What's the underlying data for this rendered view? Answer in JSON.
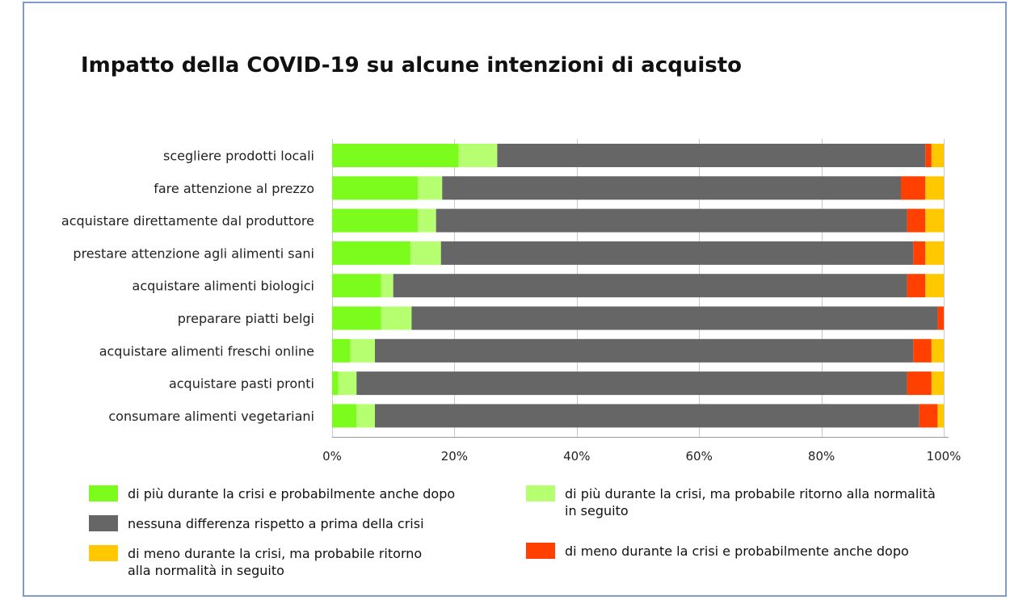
{
  "title": "Impatto della COVID-19 su alcune intenzioni di acquisto",
  "chart_data": {
    "type": "bar",
    "orientation": "horizontal",
    "stacked": true,
    "title": "Impatto della COVID-19 su alcune intenzioni di acquisto",
    "categories": [
      "scegliere prodotti locali",
      "fare attenzione al prezzo",
      "acquistare direttamente dal produttore",
      "prestare attenzione agli alimenti sani",
      "acquistare alimenti biologici",
      "preparare piatti belgi",
      "acquistare alimenti freschi online",
      "acquistare pasti pronti",
      "consumare alimenti vegetariani"
    ],
    "series": [
      {
        "name": "di più durante la crisi e probabilmente anche dopo",
        "color": "#7cfc1c",
        "values": [
          20.7,
          14,
          14,
          12.8,
          8,
          8,
          3,
          1,
          4
        ]
      },
      {
        "name": "di più durante la crisi, ma probabile ritorno alla normalità in seguito",
        "color": "#b6ff70",
        "values": [
          6.3,
          4,
          3,
          5,
          2,
          5,
          4,
          3,
          3
        ]
      },
      {
        "name": "nessuna differenza rispetto a prima della crisi",
        "color": "#666666",
        "values": [
          70,
          75,
          77,
          77.2,
          84,
          86,
          88,
          90,
          89
        ]
      },
      {
        "name": "di meno durante la crisi e probabilmente anche dopo",
        "color": "#ff4000",
        "values": [
          1,
          4,
          3,
          2,
          3,
          1,
          3,
          4,
          3
        ]
      },
      {
        "name": "di meno durante la crisi, ma probabile ritorno alla normalità in seguito",
        "color": "#ffc800",
        "values": [
          2,
          3,
          3,
          3,
          3,
          0,
          2,
          2,
          1
        ]
      }
    ],
    "xlim": [
      0,
      100
    ],
    "xticks": [
      "0%",
      "20%",
      "40%",
      "60%",
      "80%",
      "100%"
    ],
    "grid": true,
    "legend_position": "bottom"
  },
  "legend": {
    "item1": {
      "line1": "di più durante la crisi e probabilmente anche dopo",
      "line2": ""
    },
    "item2": {
      "line1": "di più durante la crisi, ma probabile ritorno alla normalità",
      "line2": "in seguito"
    },
    "item3": {
      "line1": "nessuna differenza rispetto a prima della crisi",
      "line2": ""
    },
    "item4": {
      "line1": "di meno durante la crisi, ma probabile ritorno",
      "line2": "alla normalità in seguito"
    },
    "item5": {
      "line1": "di meno durante la crisi e probabilmente anche dopo",
      "line2": ""
    }
  }
}
